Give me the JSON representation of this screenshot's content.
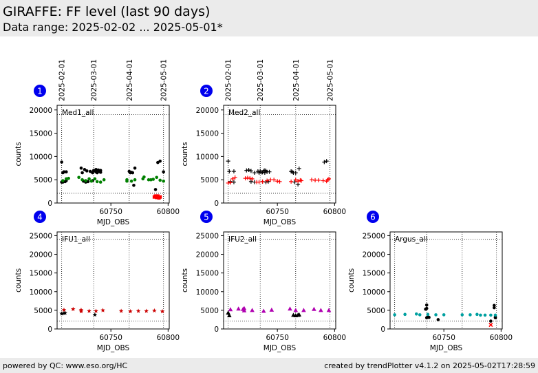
{
  "header": {
    "title": "GIRAFFE: FF level (last 90 days)",
    "subtitle": "Data range: 2025-02-02 ... 2025-05-01*"
  },
  "footer": {
    "left": "powered by QC: www.eso.org/HC",
    "right": "created by trendPlotter v4.1.2 on 2025-05-02T17:28:59"
  },
  "date_axis": {
    "labels": [
      "2025-02-01",
      "2025-03-01",
      "2025-04-01",
      "2025-05-01"
    ],
    "mjd": [
      60707,
      60735,
      60766,
      60796
    ]
  },
  "chart_data": [
    {
      "type": "scatter",
      "badge": "1",
      "panel_label": "Med1_all",
      "xlabel": "MJD_OBS",
      "ylabel": "counts",
      "xlim": [
        60703,
        60801
      ],
      "ylim": [
        0,
        21000
      ],
      "xticks": [
        60750,
        60800
      ],
      "yticks": [
        0,
        5000,
        10000,
        15000,
        20000
      ],
      "ref_lines": [
        2100,
        19000
      ],
      "series": [
        {
          "marker": "dot",
          "color": "#000000",
          "points": [
            [
              60707,
              8800
            ],
            [
              60707,
              4500
            ],
            [
              60708,
              4500
            ],
            [
              60708,
              6500
            ],
            [
              60709,
              6700
            ],
            [
              60710,
              4600
            ],
            [
              60711,
              6700
            ],
            [
              60711,
              4800
            ],
            [
              60724,
              7500
            ],
            [
              60725,
              6500
            ],
            [
              60726,
              4700
            ],
            [
              60727,
              7200
            ],
            [
              60728,
              4500
            ],
            [
              60729,
              6900
            ],
            [
              60730,
              4600
            ],
            [
              60732,
              6800
            ],
            [
              60734,
              4800
            ],
            [
              60734,
              6500
            ],
            [
              60735,
              7000
            ],
            [
              60736,
              6900
            ],
            [
              60737,
              7200
            ],
            [
              60737,
              6700
            ],
            [
              60738,
              6500
            ],
            [
              60739,
              6800
            ],
            [
              60739,
              7100
            ],
            [
              60740,
              6800
            ],
            [
              60741,
              7000
            ],
            [
              60741,
              6600
            ],
            [
              60766,
              6800
            ],
            [
              60767,
              6500
            ],
            [
              60768,
              6600
            ],
            [
              60769,
              6500
            ],
            [
              60770,
              3800
            ],
            [
              60771,
              7500
            ],
            [
              60789,
              2900
            ],
            [
              60791,
              8700
            ],
            [
              60793,
              9000
            ],
            [
              60796,
              6700
            ]
          ]
        },
        {
          "marker": "dot",
          "color": "#008000",
          "points": [
            [
              60708,
              4800
            ],
            [
              60711,
              5200
            ],
            [
              60713,
              5300
            ],
            [
              60722,
              5500
            ],
            [
              60725,
              5000
            ],
            [
              60728,
              4800
            ],
            [
              60731,
              5200
            ],
            [
              60733,
              4700
            ],
            [
              60736,
              5200
            ],
            [
              60738,
              4600
            ],
            [
              60741,
              4500
            ],
            [
              60744,
              5000
            ],
            [
              60764,
              5000
            ],
            [
              60764,
              4700
            ],
            [
              60768,
              4700
            ],
            [
              60771,
              5000
            ],
            [
              60778,
              5200
            ],
            [
              60779,
              5600
            ],
            [
              60783,
              5000
            ],
            [
              60785,
              5000
            ],
            [
              60787,
              5100
            ],
            [
              60790,
              5500
            ],
            [
              60793,
              4900
            ],
            [
              60796,
              4700
            ]
          ]
        },
        {
          "marker": "square",
          "color": "#ff0000",
          "points": [
            [
              60788,
              1300
            ],
            [
              60789,
              1500
            ],
            [
              60790,
              1200
            ],
            [
              60791,
              1500
            ],
            [
              60792,
              1100
            ],
            [
              60793,
              1300
            ]
          ]
        }
      ]
    },
    {
      "type": "scatter",
      "badge": "2",
      "panel_label": "Med2_all",
      "xlabel": "MJD_OBS",
      "ylabel": "counts",
      "xlim": [
        60703,
        60801
      ],
      "ylim": [
        0,
        21000
      ],
      "xticks": [
        60750,
        60800
      ],
      "yticks": [
        0,
        5000,
        10000,
        15000,
        20000
      ],
      "ref_lines": [
        2100,
        19000
      ],
      "series": [
        {
          "marker": "plus",
          "color": "#000000",
          "points": [
            [
              60707,
              9000
            ],
            [
              60708,
              6800
            ],
            [
              60709,
              4600
            ],
            [
              60712,
              4500
            ],
            [
              60712,
              6800
            ],
            [
              60723,
              7000
            ],
            [
              60725,
              7100
            ],
            [
              60727,
              6900
            ],
            [
              60727,
              4600
            ],
            [
              60730,
              6500
            ],
            [
              60730,
              4500
            ],
            [
              60733,
              6800
            ],
            [
              60734,
              6500
            ],
            [
              60735,
              6900
            ],
            [
              60736,
              6600
            ],
            [
              60737,
              6600
            ],
            [
              60737,
              4600
            ],
            [
              60738,
              6900
            ],
            [
              60739,
              7000
            ],
            [
              60739,
              6500
            ],
            [
              60740,
              6900
            ],
            [
              60740,
              4500
            ],
            [
              60741,
              6700
            ],
            [
              60742,
              4600
            ],
            [
              60743,
              6700
            ],
            [
              60762,
              6800
            ],
            [
              60763,
              6700
            ],
            [
              60764,
              6500
            ],
            [
              60765,
              4500
            ],
            [
              60766,
              6500
            ],
            [
              60768,
              4000
            ],
            [
              60769,
              7400
            ],
            [
              60791,
              8800
            ],
            [
              60793,
              9000
            ]
          ]
        },
        {
          "marker": "plus",
          "color": "#ff0000",
          "points": [
            [
              60707,
              4300
            ],
            [
              60709,
              4400
            ],
            [
              60711,
              5200
            ],
            [
              60713,
              5500
            ],
            [
              60722,
              5300
            ],
            [
              60724,
              5400
            ],
            [
              60726,
              5300
            ],
            [
              60728,
              5200
            ],
            [
              60732,
              4500
            ],
            [
              60734,
              4500
            ],
            [
              60737,
              4600
            ],
            [
              60741,
              4800
            ],
            [
              60744,
              5000
            ],
            [
              60747,
              5000
            ],
            [
              60750,
              4700
            ],
            [
              60752,
              4600
            ],
            [
              60762,
              4600
            ],
            [
              60766,
              5000
            ],
            [
              60768,
              4700
            ],
            [
              60770,
              4900
            ],
            [
              60771,
              4800
            ],
            [
              60780,
              5000
            ],
            [
              60783,
              4900
            ],
            [
              60786,
              4900
            ],
            [
              60790,
              4800
            ],
            [
              60793,
              4700
            ],
            [
              60794,
              5000
            ],
            [
              60795,
              5200
            ]
          ]
        }
      ]
    },
    {
      "type": "scatter",
      "badge": "4",
      "panel_label": "IFU1_all",
      "xlabel": "MJD_OBS",
      "ylabel": "counts",
      "xlim": [
        60703,
        60801
      ],
      "ylim": [
        0,
        26000
      ],
      "xticks": [
        60750,
        60800
      ],
      "yticks": [
        0,
        5000,
        10000,
        15000,
        20000,
        25000
      ],
      "ref_lines": [
        2100,
        24000
      ],
      "series": [
        {
          "marker": "star",
          "color": "#000000",
          "points": [
            [
              60707,
              4100
            ],
            [
              60709,
              4200
            ],
            [
              60710,
              4300
            ],
            [
              60736,
              3800
            ]
          ]
        },
        {
          "marker": "star",
          "color": "#cc0000",
          "points": [
            [
              60709,
              5100
            ],
            [
              60717,
              5300
            ],
            [
              60724,
              5100
            ],
            [
              60724,
              4700
            ],
            [
              60731,
              4800
            ],
            [
              60737,
              4800
            ],
            [
              60743,
              5000
            ],
            [
              60759,
              4800
            ],
            [
              60767,
              4700
            ],
            [
              60774,
              4800
            ],
            [
              60781,
              4800
            ],
            [
              60788,
              4900
            ],
            [
              60795,
              4700
            ]
          ]
        }
      ]
    },
    {
      "type": "scatter",
      "badge": "5",
      "panel_label": "IFU2_all",
      "xlabel": "MJD_OBS",
      "ylabel": "counts",
      "xlim": [
        60703,
        60801
      ],
      "ylim": [
        0,
        26000
      ],
      "xticks": [
        60750,
        60800
      ],
      "yticks": [
        0,
        5000,
        10000,
        15000,
        20000,
        25000
      ],
      "ref_lines": [
        2100,
        24000
      ],
      "series": [
        {
          "marker": "triangle",
          "color": "#000000",
          "points": [
            [
              60707,
              4300
            ],
            [
              60708,
              3600
            ],
            [
              60764,
              3700
            ],
            [
              60766,
              3600
            ],
            [
              60768,
              3700
            ],
            [
              60769,
              3800
            ]
          ]
        },
        {
          "marker": "triangle",
          "color": "#b000b0",
          "points": [
            [
              60709,
              5200
            ],
            [
              60716,
              5400
            ],
            [
              60720,
              5300
            ],
            [
              60721,
              5500
            ],
            [
              60721,
              4900
            ],
            [
              60728,
              5000
            ],
            [
              60738,
              4800
            ],
            [
              60745,
              5100
            ],
            [
              60761,
              5400
            ],
            [
              60766,
              5000
            ],
            [
              60773,
              5000
            ],
            [
              60782,
              5300
            ],
            [
              60788,
              5000
            ],
            [
              60795,
              5000
            ]
          ]
        }
      ]
    },
    {
      "type": "scatter",
      "badge": "6",
      "panel_label": "Argus_all",
      "xlabel": "MJD_OBS",
      "ylabel": "counts",
      "xlim": [
        60703,
        60801
      ],
      "ylim": [
        0,
        26000
      ],
      "xticks": [
        60750,
        60800
      ],
      "yticks": [
        0,
        5000,
        10000,
        15000,
        20000,
        25000
      ],
      "ref_lines": [
        2100,
        24000
      ],
      "series": [
        {
          "marker": "dot",
          "color": "#000000",
          "points": [
            [
              60735,
              6400
            ],
            [
              60735,
              5500
            ],
            [
              60734,
              5300
            ],
            [
              60735,
              3000
            ],
            [
              60736,
              3300
            ],
            [
              60737,
              3100
            ],
            [
              60745,
              2500
            ],
            [
              60791,
              2100
            ],
            [
              60794,
              6300
            ],
            [
              60794,
              5700
            ],
            [
              60795,
              3200
            ],
            [
              60795,
              3000
            ]
          ]
        },
        {
          "marker": "dot",
          "color": "#00a0a0",
          "points": [
            [
              60707,
              3800
            ],
            [
              60716,
              3900
            ],
            [
              60726,
              4000
            ],
            [
              60729,
              3800
            ],
            [
              60736,
              3900
            ],
            [
              60743,
              3800
            ],
            [
              60750,
              3800
            ],
            [
              60766,
              3800
            ],
            [
              60773,
              3800
            ],
            [
              60779,
              3900
            ],
            [
              60782,
              3700
            ],
            [
              60786,
              3700
            ],
            [
              60791,
              3700
            ],
            [
              60795,
              3700
            ]
          ]
        },
        {
          "marker": "x",
          "color": "#ff0000",
          "points": [
            [
              60791,
              1100
            ]
          ]
        }
      ]
    }
  ]
}
